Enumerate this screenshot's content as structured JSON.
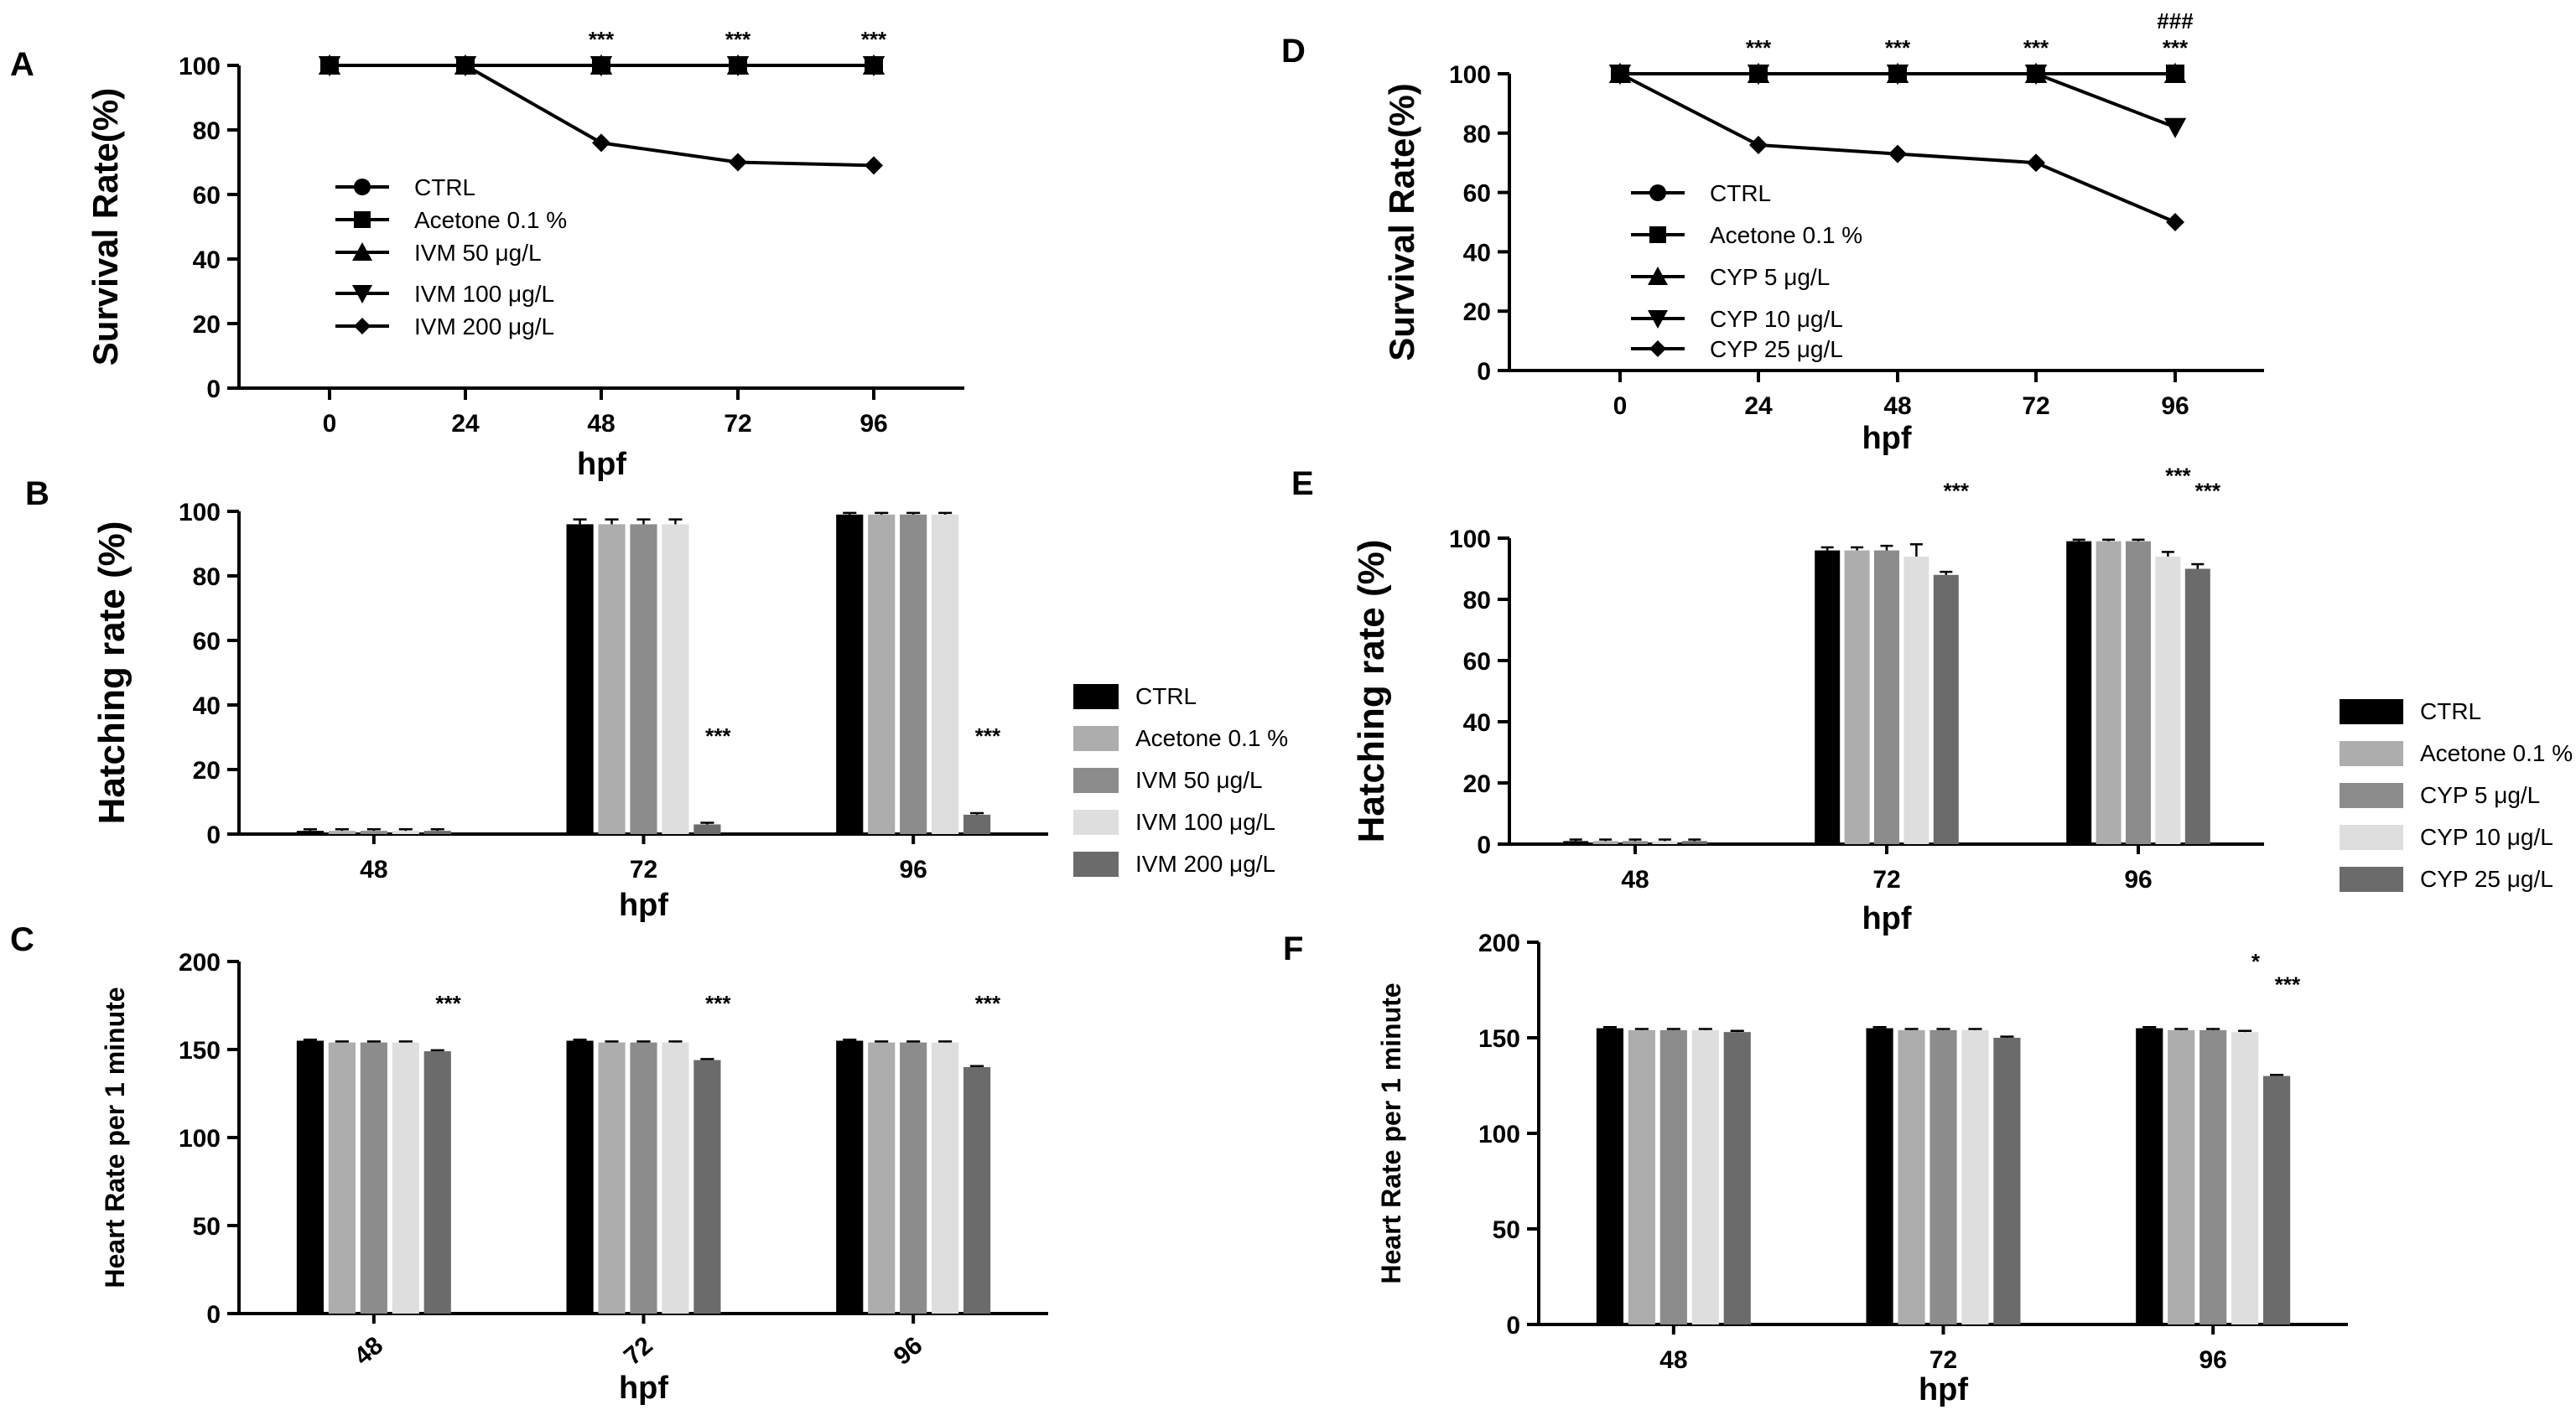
{
  "chart_data": [
    {
      "id": "A",
      "panel_label": "A",
      "type": "line",
      "xlabel": "hpf",
      "ylabel": "Survival Rate(%)",
      "x": [
        "0",
        "24",
        "48",
        "72",
        "96"
      ],
      "ylim": [
        0,
        100
      ],
      "yticks": [
        "0",
        "20",
        "40",
        "60",
        "80",
        "100"
      ],
      "series": [
        {
          "name": "CTRL",
          "marker": "circle",
          "values": [
            100,
            100,
            100,
            100,
            100
          ]
        },
        {
          "name": "Acetone 0.1 %",
          "marker": "square",
          "values": [
            100,
            100,
            100,
            100,
            100
          ]
        },
        {
          "name": "IVM 50 μg/L",
          "marker": "triangle-up",
          "values": [
            100,
            100,
            100,
            100,
            100
          ]
        },
        {
          "name": "IVM 100 μg/L",
          "marker": "triangle-down",
          "values": [
            100,
            100,
            100,
            100,
            100
          ]
        },
        {
          "name": "IVM 200 μg/L",
          "marker": "diamond",
          "values": [
            100,
            100,
            76,
            70,
            69
          ]
        }
      ],
      "annotations": [
        {
          "x_index": 2,
          "lines": [
            "***"
          ]
        },
        {
          "x_index": 3,
          "lines": [
            "***"
          ]
        },
        {
          "x_index": 4,
          "lines": [
            "***"
          ]
        }
      ]
    },
    {
      "id": "B",
      "panel_label": "B",
      "type": "bar",
      "xlabel": "hpf",
      "ylabel": "Hatching rate (%)",
      "categories": [
        "48",
        "72",
        "96"
      ],
      "ylim": [
        0,
        100
      ],
      "yticks": [
        "0",
        "20",
        "40",
        "60",
        "80",
        "100"
      ],
      "series": [
        {
          "name": "CTRL",
          "color": "#000000",
          "values": [
            1,
            96,
            99
          ],
          "errors": [
            0.5,
            1.5,
            0.5
          ]
        },
        {
          "name": "Acetone 0.1 %",
          "color": "#adadad",
          "values": [
            1,
            96,
            99
          ],
          "errors": [
            0.5,
            1.5,
            0.5
          ]
        },
        {
          "name": "IVM 50 μg/L",
          "color": "#8c8c8c",
          "values": [
            1,
            96,
            99
          ],
          "errors": [
            0.5,
            1.5,
            0.5
          ]
        },
        {
          "name": "IVM 100 μg/L",
          "color": "#dedede",
          "values": [
            1,
            96,
            99
          ],
          "errors": [
            0.5,
            1.5,
            0.5
          ]
        },
        {
          "name": "IVM 200 μg/L",
          "color": "#6b6b6b",
          "values": [
            1,
            3,
            6
          ],
          "errors": [
            0.5,
            0.5,
            0.5
          ]
        }
      ],
      "annotations": [
        {
          "category_index": 1,
          "series_index": 4,
          "text": "***",
          "y": 28
        },
        {
          "category_index": 2,
          "series_index": 4,
          "text": "***",
          "y": 28
        }
      ]
    },
    {
      "id": "C",
      "panel_label": "C",
      "type": "bar",
      "xlabel": "hpf",
      "ylabel": "Heart Rate per 1 minute",
      "categories": [
        "48",
        "72",
        "96"
      ],
      "ylim": [
        0,
        200
      ],
      "yticks": [
        "0",
        "50",
        "100",
        "150",
        "200"
      ],
      "series": [
        {
          "name": "CTRL",
          "color": "#000000",
          "values": [
            155,
            155,
            155
          ]
        },
        {
          "name": "Acetone 0.1 %",
          "color": "#adadad",
          "values": [
            154,
            154,
            154
          ]
        },
        {
          "name": "IVM 50 μg/L",
          "color": "#8c8c8c",
          "values": [
            154,
            154,
            154
          ]
        },
        {
          "name": "IVM 100 μg/L",
          "color": "#dedede",
          "values": [
            154,
            154,
            154
          ]
        },
        {
          "name": "IVM 200 μg/L",
          "color": "#6b6b6b",
          "values": [
            149,
            144,
            140
          ]
        }
      ],
      "annotations": [
        {
          "category_index": 0,
          "series_index": 4,
          "text": "***",
          "y": 172
        },
        {
          "category_index": 1,
          "series_index": 4,
          "text": "***",
          "y": 172
        },
        {
          "category_index": 2,
          "series_index": 4,
          "text": "***",
          "y": 172
        }
      ]
    },
    {
      "id": "D",
      "panel_label": "D",
      "type": "line",
      "xlabel": "hpf",
      "ylabel": "Survival Rate(%)",
      "x": [
        "0",
        "24",
        "48",
        "72",
        "96"
      ],
      "ylim": [
        0,
        100
      ],
      "yticks": [
        "0",
        "20",
        "40",
        "60",
        "80",
        "100"
      ],
      "series": [
        {
          "name": "CTRL",
          "marker": "circle",
          "values": [
            100,
            100,
            100,
            100,
            100
          ]
        },
        {
          "name": "Acetone 0.1 %",
          "marker": "square",
          "values": [
            100,
            100,
            100,
            100,
            100
          ]
        },
        {
          "name": "CYP 5 μg/L",
          "marker": "triangle-up",
          "values": [
            100,
            100,
            100,
            100,
            100
          ]
        },
        {
          "name": "CYP 10 μg/L",
          "marker": "triangle-down",
          "values": [
            100,
            100,
            100,
            100,
            82
          ]
        },
        {
          "name": "CYP 25 μg/L",
          "marker": "diamond",
          "values": [
            100,
            76,
            73,
            70,
            50
          ]
        }
      ],
      "annotations": [
        {
          "x_index": 1,
          "lines": [
            "***"
          ]
        },
        {
          "x_index": 2,
          "lines": [
            "***"
          ]
        },
        {
          "x_index": 3,
          "lines": [
            "***"
          ]
        },
        {
          "x_index": 4,
          "lines": [
            "###",
            "***"
          ]
        }
      ]
    },
    {
      "id": "E",
      "panel_label": "E",
      "type": "bar",
      "xlabel": "hpf",
      "ylabel": "Hatching rate (%)",
      "categories": [
        "48",
        "72",
        "96"
      ],
      "ylim": [
        0,
        100
      ],
      "yticks": [
        "0",
        "20",
        "40",
        "60",
        "80",
        "100"
      ],
      "series": [
        {
          "name": "CTRL",
          "color": "#000000",
          "values": [
            1,
            96,
            99
          ],
          "errors": [
            0.5,
            1,
            0.5
          ]
        },
        {
          "name": "Acetone 0.1 %",
          "color": "#adadad",
          "values": [
            1,
            96,
            99
          ],
          "errors": [
            0.5,
            1,
            0.5
          ]
        },
        {
          "name": "CYP 5 μg/L",
          "color": "#8c8c8c",
          "values": [
            1,
            96,
            99
          ],
          "errors": [
            0.5,
            1.5,
            0.5
          ]
        },
        {
          "name": "CYP 10 μg/L",
          "color": "#dedede",
          "values": [
            1,
            94,
            94
          ],
          "errors": [
            0.5,
            4,
            1.5
          ]
        },
        {
          "name": "CYP 25 μg/L",
          "color": "#6b6b6b",
          "values": [
            1,
            88,
            90
          ],
          "errors": [
            0.5,
            1,
            1.5
          ]
        }
      ],
      "annotations": [
        {
          "category_index": 1,
          "series_index": 4,
          "text": "***",
          "y": 113
        },
        {
          "category_index": 2,
          "series_index": 3,
          "text": "***",
          "y": 118
        },
        {
          "category_index": 2,
          "series_index": 4,
          "text": "***",
          "y": 113
        }
      ]
    },
    {
      "id": "F",
      "panel_label": "F",
      "type": "bar",
      "xlabel": "hpf",
      "ylabel": "Heart Rate per 1 minute",
      "categories": [
        "48",
        "72",
        "96"
      ],
      "ylim": [
        0,
        200
      ],
      "yticks": [
        "0",
        "50",
        "100",
        "150",
        "200"
      ],
      "series": [
        {
          "name": "CTRL",
          "color": "#000000",
          "values": [
            155,
            155,
            155
          ]
        },
        {
          "name": "Acetone 0.1 %",
          "color": "#adadad",
          "values": [
            154,
            154,
            154
          ]
        },
        {
          "name": "CYP 5 μg/L",
          "color": "#8c8c8c",
          "values": [
            154,
            154,
            154
          ]
        },
        {
          "name": "CYP 10 μg/L",
          "color": "#dedede",
          "values": [
            154,
            154,
            153
          ]
        },
        {
          "name": "CYP 25 μg/L",
          "color": "#6b6b6b",
          "values": [
            153,
            150,
            130
          ]
        }
      ],
      "annotations": [
        {
          "category_index": 2,
          "series_index": 3,
          "text": "*",
          "y": 186
        },
        {
          "category_index": 2,
          "series_index": 4,
          "text": "***",
          "y": 174
        }
      ]
    }
  ]
}
